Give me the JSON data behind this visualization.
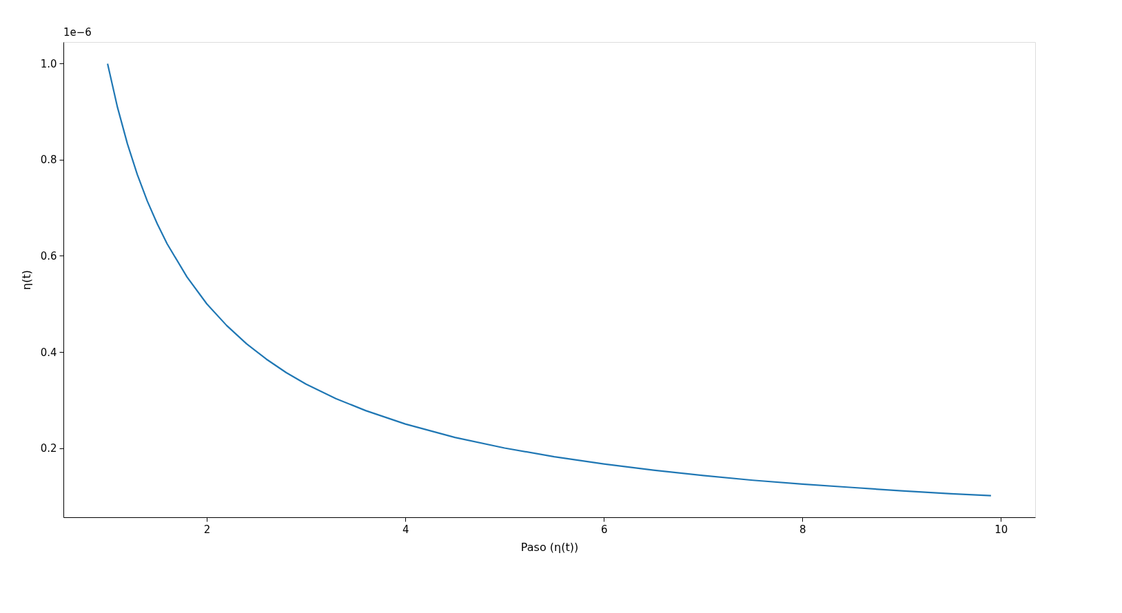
{
  "chart_data": {
    "type": "line",
    "xlabel": "Paso (η(t))",
    "ylabel": "η(t)",
    "annotations": [
      "1e−6"
    ],
    "x": [
      1,
      1.1,
      1.2,
      1.3,
      1.4,
      1.5,
      1.6,
      1.8,
      2,
      2.2,
      2.4,
      2.6,
      2.8,
      3,
      3.3,
      3.6,
      4,
      4.5,
      5,
      5.5,
      6,
      6.5,
      7,
      7.5,
      8,
      8.5,
      9,
      9.5,
      9.9
    ],
    "series": [
      {
        "color": "#1f77b4",
        "values": [
          1.0,
          0.909,
          0.833,
          0.769,
          0.714,
          0.667,
          0.625,
          0.556,
          0.5,
          0.455,
          0.417,
          0.385,
          0.357,
          0.333,
          0.303,
          0.278,
          0.25,
          0.222,
          0.2,
          0.182,
          0.167,
          0.154,
          0.143,
          0.133,
          0.125,
          0.118,
          0.111,
          0.105,
          0.101
        ]
      }
    ],
    "xlim": [
      0.555,
      10.345
    ],
    "xticks": [
      2,
      4,
      6,
      8,
      10
    ],
    "ylim": [
      0.056,
      1.045
    ],
    "yticks": [
      0.2,
      0.4,
      0.6,
      0.8,
      {
        "value": 1.0,
        "label": "1.0"
      }
    ],
    "grid": false,
    "marker": "none",
    "line_style": "solid"
  }
}
